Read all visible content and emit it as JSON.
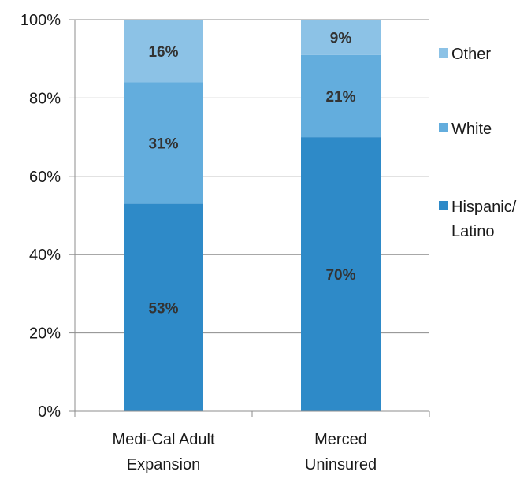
{
  "chart_data": {
    "type": "bar",
    "stacked": true,
    "categories": [
      [
        "Medi-Cal Adult",
        "Expansion"
      ],
      [
        "Merced",
        "Uninsured"
      ]
    ],
    "series": [
      {
        "name": "Hispanic/ Latino",
        "legend_lines": [
          "Hispanic/",
          "Latino"
        ],
        "values": [
          53,
          70
        ],
        "labels": [
          "53%",
          "70%"
        ],
        "color": "#2e8ac8"
      },
      {
        "name": "White",
        "legend_lines": [
          "White"
        ],
        "values": [
          31,
          21
        ],
        "labels": [
          "31%",
          "21%"
        ],
        "color": "#63addd"
      },
      {
        "name": "Other",
        "legend_lines": [
          "Other"
        ],
        "values": [
          16,
          9
        ],
        "labels": [
          "16%",
          "9%"
        ],
        "color": "#8cc2e6"
      }
    ],
    "y_ticks": [
      "0%",
      "20%",
      "40%",
      "60%",
      "80%",
      "100%"
    ],
    "ylim": [
      0,
      100
    ],
    "grid": true,
    "legend_position": "right",
    "title": "",
    "xlabel": "",
    "ylabel": ""
  }
}
